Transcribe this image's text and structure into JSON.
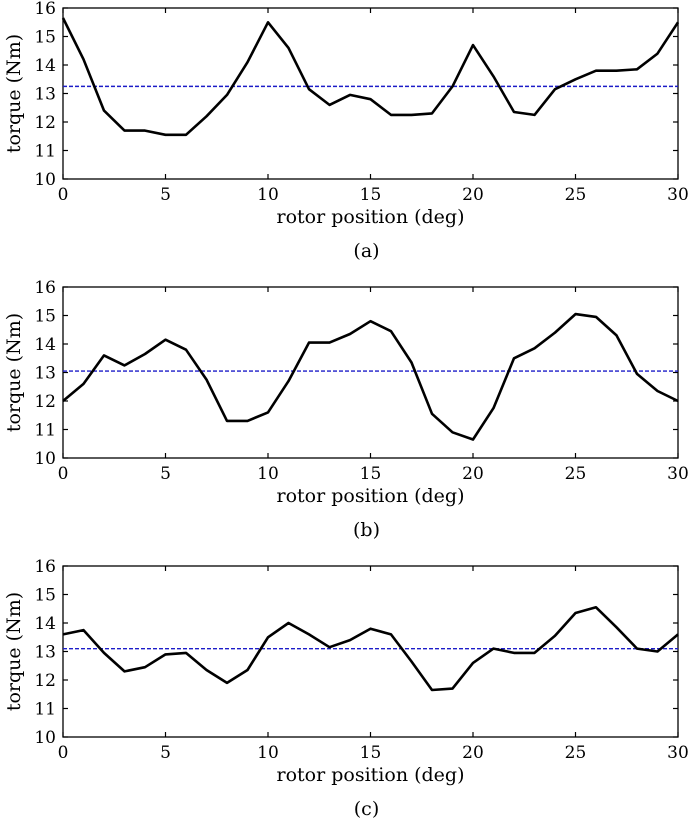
{
  "chart_data": [
    {
      "type": "line",
      "xlabel": "rotor position (deg)",
      "ylabel": "torque (Nm)",
      "caption": "(a)",
      "xlim": [
        0,
        30
      ],
      "ylim": [
        10,
        16
      ],
      "x_ticks": [
        0,
        5,
        10,
        15,
        20,
        25,
        30
      ],
      "y_ticks": [
        10,
        11,
        12,
        13,
        14,
        15,
        16
      ],
      "grid": false,
      "series": [
        {
          "color": "#000000",
          "x": [
            0,
            1,
            2,
            3,
            4,
            5,
            6,
            7,
            8,
            9,
            10,
            11,
            12,
            13,
            14,
            15,
            16,
            17,
            18,
            19,
            20,
            21,
            22,
            23,
            24,
            25,
            26,
            27,
            28,
            29,
            30
          ],
          "y": [
            15.65,
            14.2,
            12.4,
            11.7,
            11.7,
            11.55,
            11.55,
            12.2,
            12.95,
            14.1,
            15.5,
            14.6,
            13.15,
            12.6,
            12.95,
            12.8,
            12.25,
            12.25,
            12.3,
            13.25,
            14.7,
            13.6,
            12.35,
            12.25,
            13.15,
            13.5,
            13.8,
            13.8,
            13.85,
            14.4,
            15.5
          ]
        }
      ],
      "mean": {
        "y": 13.25,
        "color": "#1c1cc8",
        "style": "dashed"
      }
    },
    {
      "type": "line",
      "xlabel": "rotor position (deg)",
      "ylabel": "torque (Nm)",
      "caption": "(b)",
      "xlim": [
        0,
        30
      ],
      "ylim": [
        10,
        16
      ],
      "x_ticks": [
        0,
        5,
        10,
        15,
        20,
        25,
        30
      ],
      "y_ticks": [
        10,
        11,
        12,
        13,
        14,
        15,
        16
      ],
      "grid": false,
      "series": [
        {
          "color": "#000000",
          "x": [
            0,
            1,
            2,
            3,
            4,
            5,
            6,
            7,
            8,
            9,
            10,
            11,
            12,
            13,
            14,
            15,
            16,
            17,
            18,
            19,
            20,
            21,
            22,
            23,
            24,
            25,
            26,
            27,
            28,
            29,
            30
          ],
          "y": [
            12.0,
            12.6,
            13.6,
            13.25,
            13.65,
            14.15,
            13.8,
            12.75,
            11.3,
            11.3,
            11.6,
            12.7,
            14.05,
            14.05,
            14.35,
            14.8,
            14.45,
            13.35,
            11.55,
            10.9,
            10.65,
            11.75,
            13.5,
            13.85,
            14.4,
            15.05,
            14.95,
            14.3,
            12.95,
            12.35,
            12.0
          ]
        }
      ],
      "mean": {
        "y": 13.05,
        "color": "#1c1cc8",
        "style": "dashed"
      }
    },
    {
      "type": "line",
      "xlabel": "rotor position (deg)",
      "ylabel": "torque (Nm)",
      "caption": "(c)",
      "xlim": [
        0,
        30
      ],
      "ylim": [
        10,
        16
      ],
      "x_ticks": [
        0,
        5,
        10,
        15,
        20,
        25,
        30
      ],
      "y_ticks": [
        10,
        11,
        12,
        13,
        14,
        15,
        16
      ],
      "grid": false,
      "series": [
        {
          "color": "#000000",
          "x": [
            0,
            1,
            2,
            3,
            4,
            5,
            6,
            7,
            8,
            9,
            10,
            11,
            12,
            13,
            14,
            15,
            16,
            17,
            18,
            19,
            20,
            21,
            22,
            23,
            24,
            25,
            26,
            27,
            28,
            29,
            30
          ],
          "y": [
            13.6,
            13.75,
            12.95,
            12.3,
            12.45,
            12.9,
            12.95,
            12.35,
            11.9,
            12.35,
            13.5,
            14.0,
            13.6,
            13.15,
            13.4,
            13.8,
            13.6,
            12.65,
            11.65,
            11.7,
            12.6,
            13.1,
            12.95,
            12.95,
            13.55,
            14.35,
            14.55,
            13.85,
            13.1,
            13.0,
            13.6
          ]
        }
      ],
      "mean": {
        "y": 13.1,
        "color": "#1c1cc8",
        "style": "dashed"
      }
    }
  ]
}
